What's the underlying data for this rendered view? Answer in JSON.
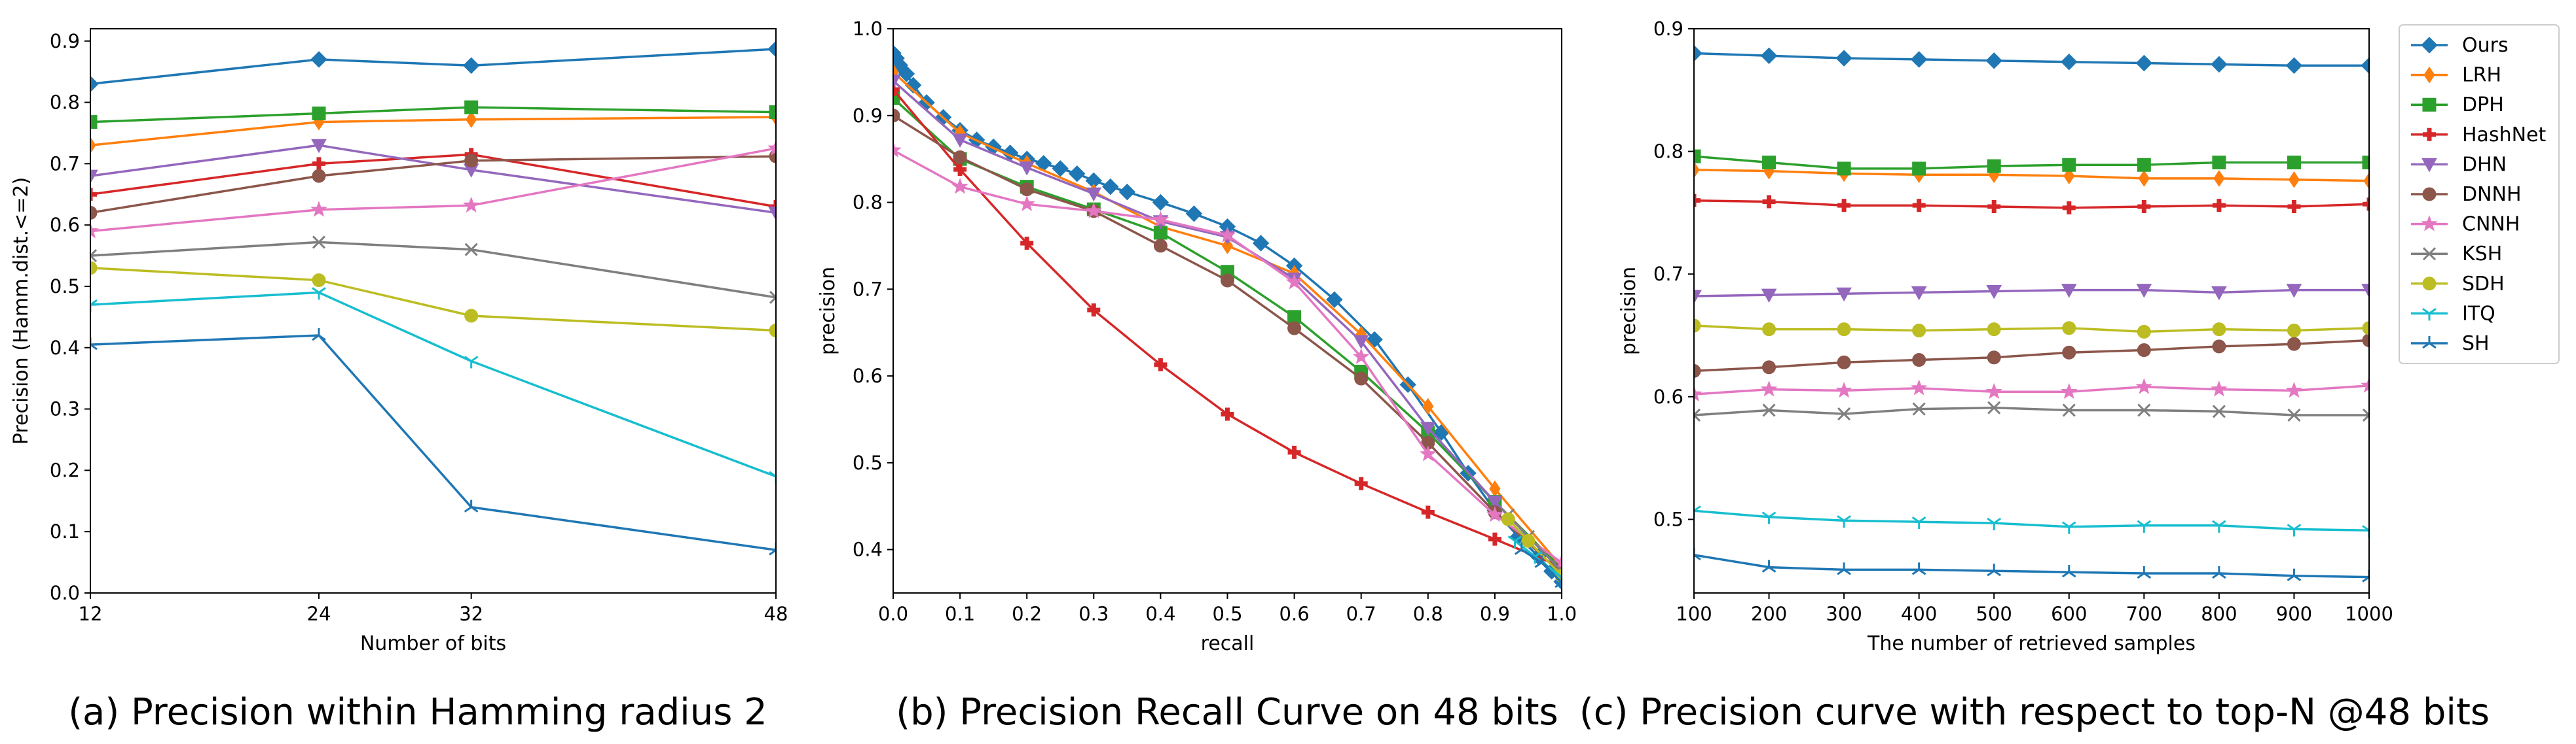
{
  "series_styles": [
    {
      "name": "Ours",
      "color": "#1f77b4",
      "marker": "diamond"
    },
    {
      "name": "LRH",
      "color": "#ff7f0e",
      "marker": "thin_diamond"
    },
    {
      "name": "DPH",
      "color": "#2ca02c",
      "marker": "square"
    },
    {
      "name": "HashNet",
      "color": "#d62728",
      "marker": "plus"
    },
    {
      "name": "DHN",
      "color": "#9467bd",
      "marker": "triangle_down"
    },
    {
      "name": "DNNH",
      "color": "#8c564b",
      "marker": "circle"
    },
    {
      "name": "CNNH",
      "color": "#e377c2",
      "marker": "star"
    },
    {
      "name": "KSH",
      "color": "#7f7f7f",
      "marker": "x"
    },
    {
      "name": "SDH",
      "color": "#bcbd22",
      "marker": "circle"
    },
    {
      "name": "ITQ",
      "color": "#17becf",
      "marker": "tri_down"
    },
    {
      "name": "SH",
      "color": "#1f77b4",
      "marker": "tri_up"
    }
  ],
  "chart_data": [
    {
      "type": "line",
      "title": "",
      "caption": "(a) Precision within Hamming radius 2",
      "xlabel": "Number of bits",
      "ylabel": "Precision (Hamm.dist.<=2)",
      "xlim": [
        12,
        48
      ],
      "ylim": [
        0.0,
        0.92
      ],
      "xticks": [
        12,
        24,
        32,
        48
      ],
      "xtick_labels": [
        "12",
        "24",
        "32",
        "48"
      ],
      "yticks": [
        0.0,
        0.1,
        0.2,
        0.3,
        0.4,
        0.5,
        0.6,
        0.7,
        0.8,
        0.9
      ],
      "ytick_labels": [
        "0.0",
        "0.1",
        "0.2",
        "0.3",
        "0.4",
        "0.5",
        "0.6",
        "0.7",
        "0.8",
        "0.9"
      ],
      "x": [
        12,
        24,
        32,
        48
      ],
      "series": [
        {
          "name": "Ours",
          "values": [
            0.83,
            0.87,
            0.86,
            0.887
          ]
        },
        {
          "name": "LRH",
          "values": [
            0.73,
            0.768,
            0.772,
            0.776
          ]
        },
        {
          "name": "DPH",
          "values": [
            0.768,
            0.782,
            0.792,
            0.784
          ]
        },
        {
          "name": "HashNet",
          "values": [
            0.65,
            0.7,
            0.715,
            0.63
          ]
        },
        {
          "name": "DHN",
          "values": [
            0.68,
            0.73,
            0.69,
            0.62
          ]
        },
        {
          "name": "DNNH",
          "values": [
            0.62,
            0.68,
            0.705,
            0.712
          ]
        },
        {
          "name": "CNNH",
          "values": [
            0.59,
            0.625,
            0.632,
            0.725
          ]
        },
        {
          "name": "KSH",
          "values": [
            0.55,
            0.572,
            0.56,
            0.482
          ]
        },
        {
          "name": "SDH",
          "values": [
            0.53,
            0.51,
            0.452,
            0.428
          ]
        },
        {
          "name": "ITQ",
          "values": [
            0.47,
            0.49,
            0.378,
            0.19
          ]
        },
        {
          "name": "SH",
          "values": [
            0.405,
            0.42,
            0.14,
            0.07
          ]
        }
      ]
    },
    {
      "type": "line",
      "title": "",
      "caption": "(b) Precision Recall Curve on 48 bits",
      "xlabel": "recall",
      "ylabel": "precision",
      "xlim": [
        0.0,
        1.0
      ],
      "ylim": [
        0.35,
        1.0
      ],
      "xticks": [
        0.0,
        0.1,
        0.2,
        0.3,
        0.4,
        0.5,
        0.6,
        0.7,
        0.8,
        0.9,
        1.0
      ],
      "xtick_labels": [
        "0.0",
        "0.1",
        "0.2",
        "0.3",
        "0.4",
        "0.5",
        "0.6",
        "0.7",
        "0.8",
        "0.9",
        "1.0"
      ],
      "yticks": [
        0.4,
        0.5,
        0.6,
        0.7,
        0.8,
        0.9,
        1.0
      ],
      "ytick_labels": [
        "0.4",
        "0.5",
        "0.6",
        "0.7",
        "0.8",
        "0.9",
        "1.0"
      ],
      "series": [
        {
          "name": "Ours",
          "x": [
            0.0,
            0.005,
            0.01,
            0.02,
            0.03,
            0.05,
            0.075,
            0.1,
            0.125,
            0.15,
            0.175,
            0.2,
            0.225,
            0.25,
            0.275,
            0.3,
            0.325,
            0.35,
            0.4,
            0.45,
            0.5,
            0.55,
            0.6,
            0.66,
            0.72,
            0.77,
            0.82,
            0.86,
            0.9,
            0.935,
            0.965,
            0.985,
            1.0
          ],
          "values": [
            0.972,
            0.966,
            0.958,
            0.948,
            0.935,
            0.915,
            0.898,
            0.883,
            0.872,
            0.864,
            0.857,
            0.85,
            0.845,
            0.839,
            0.833,
            0.825,
            0.818,
            0.812,
            0.8,
            0.787,
            0.772,
            0.753,
            0.727,
            0.688,
            0.642,
            0.59,
            0.535,
            0.488,
            0.445,
            0.415,
            0.392,
            0.375,
            0.363
          ]
        },
        {
          "name": "LRH",
          "x": [
            0.0,
            0.1,
            0.2,
            0.3,
            0.4,
            0.5,
            0.6,
            0.7,
            0.8,
            0.9,
            1.0
          ],
          "values": [
            0.95,
            0.88,
            0.845,
            0.812,
            0.772,
            0.75,
            0.718,
            0.648,
            0.565,
            0.47,
            0.38
          ]
        },
        {
          "name": "DPH",
          "x": [
            0.0,
            0.1,
            0.2,
            0.3,
            0.4,
            0.5,
            0.6,
            0.7,
            0.8,
            0.9,
            1.0
          ],
          "values": [
            0.92,
            0.85,
            0.818,
            0.792,
            0.765,
            0.72,
            0.668,
            0.605,
            0.535,
            0.455,
            0.378
          ]
        },
        {
          "name": "HashNet",
          "x": [
            0.0,
            0.1,
            0.2,
            0.3,
            0.4,
            0.5,
            0.6,
            0.7,
            0.8,
            0.9,
            1.0
          ],
          "values": [
            0.93,
            0.838,
            0.753,
            0.676,
            0.613,
            0.556,
            0.512,
            0.476,
            0.443,
            0.412,
            0.38
          ]
        },
        {
          "name": "DHN",
          "x": [
            0.0,
            0.1,
            0.2,
            0.3,
            0.4,
            0.5,
            0.6,
            0.7,
            0.8,
            0.9,
            1.0
          ],
          "values": [
            0.94,
            0.872,
            0.84,
            0.81,
            0.778,
            0.76,
            0.712,
            0.64,
            0.54,
            0.455,
            0.375
          ]
        },
        {
          "name": "DNNH",
          "x": [
            0.0,
            0.1,
            0.2,
            0.3,
            0.4,
            0.5,
            0.6,
            0.7,
            0.8,
            0.9,
            1.0
          ],
          "values": [
            0.9,
            0.852,
            0.815,
            0.79,
            0.75,
            0.71,
            0.655,
            0.597,
            0.523,
            0.443,
            0.372
          ]
        },
        {
          "name": "CNNH",
          "x": [
            0.0,
            0.1,
            0.2,
            0.3,
            0.4,
            0.5,
            0.6,
            0.7,
            0.8,
            0.9,
            1.0
          ],
          "values": [
            0.86,
            0.818,
            0.798,
            0.79,
            0.78,
            0.762,
            0.708,
            0.622,
            0.51,
            0.44,
            0.385
          ]
        },
        {
          "name": "KSH",
          "x": [
            0.92,
            0.95,
            1.0
          ],
          "values": [
            0.44,
            0.415,
            0.375
          ]
        },
        {
          "name": "SDH",
          "x": [
            0.92,
            0.95,
            1.0
          ],
          "values": [
            0.435,
            0.41,
            0.37
          ]
        },
        {
          "name": "ITQ",
          "x": [
            0.93,
            0.96,
            1.0
          ],
          "values": [
            0.41,
            0.392,
            0.368
          ]
        },
        {
          "name": "SH",
          "x": [
            0.94,
            0.97,
            1.0
          ],
          "values": [
            0.4,
            0.385,
            0.362
          ]
        }
      ]
    },
    {
      "type": "line",
      "title": "",
      "caption": "(c) Precision curve with respect to top-N @48 bits",
      "xlabel": "The number of retrieved samples",
      "ylabel": "precision",
      "xlim": [
        100,
        1000
      ],
      "ylim": [
        0.44,
        0.9
      ],
      "xticks": [
        100,
        200,
        300,
        400,
        500,
        600,
        700,
        800,
        900,
        1000
      ],
      "xtick_labels": [
        "100",
        "200",
        "300",
        "400",
        "500",
        "600",
        "700",
        "800",
        "900",
        "1000"
      ],
      "yticks": [
        0.5,
        0.6,
        0.7,
        0.8,
        0.9
      ],
      "ytick_labels": [
        "0.5",
        "0.6",
        "0.7",
        "0.8",
        "0.9"
      ],
      "x": [
        100,
        200,
        300,
        400,
        500,
        600,
        700,
        800,
        900,
        1000
      ],
      "series": [
        {
          "name": "Ours",
          "values": [
            0.88,
            0.878,
            0.876,
            0.875,
            0.874,
            0.873,
            0.872,
            0.871,
            0.87,
            0.87
          ]
        },
        {
          "name": "LRH",
          "values": [
            0.785,
            0.784,
            0.782,
            0.781,
            0.781,
            0.78,
            0.778,
            0.778,
            0.777,
            0.776
          ]
        },
        {
          "name": "DPH",
          "values": [
            0.796,
            0.791,
            0.786,
            0.786,
            0.788,
            0.789,
            0.789,
            0.791,
            0.791,
            0.791
          ]
        },
        {
          "name": "HashNet",
          "values": [
            0.76,
            0.759,
            0.756,
            0.756,
            0.755,
            0.754,
            0.755,
            0.756,
            0.755,
            0.757
          ]
        },
        {
          "name": "DHN",
          "values": [
            0.682,
            0.683,
            0.684,
            0.685,
            0.686,
            0.687,
            0.687,
            0.685,
            0.687,
            0.687
          ]
        },
        {
          "name": "DNNH",
          "values": [
            0.621,
            0.624,
            0.628,
            0.63,
            0.632,
            0.636,
            0.638,
            0.641,
            0.643,
            0.646
          ]
        },
        {
          "name": "CNNH",
          "values": [
            0.602,
            0.606,
            0.605,
            0.607,
            0.604,
            0.604,
            0.608,
            0.606,
            0.605,
            0.609
          ]
        },
        {
          "name": "KSH",
          "values": [
            0.585,
            0.589,
            0.586,
            0.59,
            0.591,
            0.589,
            0.589,
            0.588,
            0.585,
            0.585
          ]
        },
        {
          "name": "SDH",
          "values": [
            0.658,
            0.655,
            0.655,
            0.654,
            0.655,
            0.656,
            0.653,
            0.655,
            0.654,
            0.656
          ]
        },
        {
          "name": "ITQ",
          "values": [
            0.507,
            0.502,
            0.499,
            0.498,
            0.497,
            0.494,
            0.495,
            0.495,
            0.492,
            0.491
          ]
        },
        {
          "name": "SH",
          "values": [
            0.471,
            0.461,
            0.459,
            0.459,
            0.458,
            0.457,
            0.456,
            0.456,
            0.454,
            0.453
          ]
        }
      ]
    }
  ]
}
